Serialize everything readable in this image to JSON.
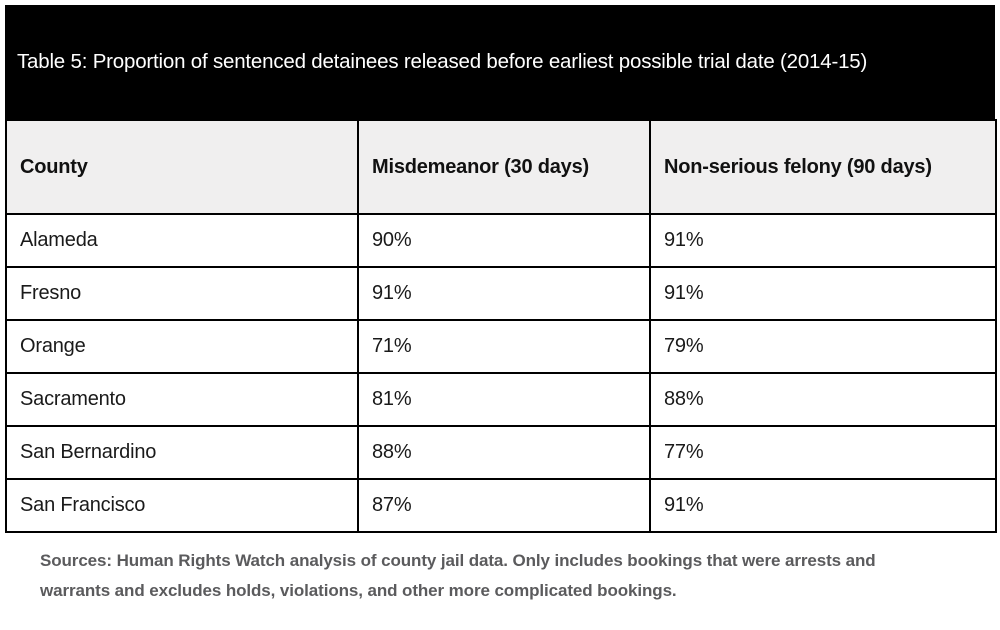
{
  "title": "Table 5: Proportion of sentenced detainees released before earliest possible trial date (2014-15)",
  "table": {
    "columns": [
      "County",
      "Misdemeanor (30 days)",
      "Non-serious felony (90 days)"
    ],
    "rows": [
      {
        "cells": [
          "Alameda",
          "90%",
          "91%"
        ]
      },
      {
        "cells": [
          "Fresno",
          "91%",
          "91%"
        ]
      },
      {
        "cells": [
          "Orange",
          "71%",
          "79%"
        ]
      },
      {
        "cells": [
          "Sacramento",
          "81%",
          "88%"
        ]
      },
      {
        "cells": [
          "San Bernardino",
          "88%",
          "77%"
        ]
      },
      {
        "cells": [
          "San Francisco",
          "87%",
          "91%"
        ]
      }
    ]
  },
  "footer": {
    "sources": "Sources: Human Rights Watch analysis of county jail data. Only includes bookings that were arrests and warrants and excludes holds, violations, and other more complicated bookings."
  },
  "colors": {
    "title_band_bg": "#000000",
    "title_text": "#ffffff",
    "header_row_bg": "#f0efef",
    "table_border": "#000000",
    "body_text": "#1a1a1a",
    "footer_text": "#5b5b5d",
    "page_bg": "#ffffff"
  },
  "chart_data": {
    "type": "table",
    "title": "Table 5: Proportion of sentenced detainees released before earliest possible trial date (2014-15)",
    "categories": [
      "Alameda",
      "Fresno",
      "Orange",
      "Sacramento",
      "San Bernardino",
      "San Francisco"
    ],
    "series": [
      {
        "name": "Misdemeanor (30 days)",
        "unit": "%",
        "values": [
          90,
          91,
          71,
          81,
          88,
          87
        ]
      },
      {
        "name": "Non-serious felony (90 days)",
        "unit": "%",
        "values": [
          91,
          91,
          79,
          88,
          77,
          91
        ]
      }
    ],
    "period": "2014-15",
    "source_note": "Sources: Human Rights Watch analysis of county jail data. Only includes bookings that were arrests and warrants and excludes holds, violations, and other more complicated bookings."
  }
}
